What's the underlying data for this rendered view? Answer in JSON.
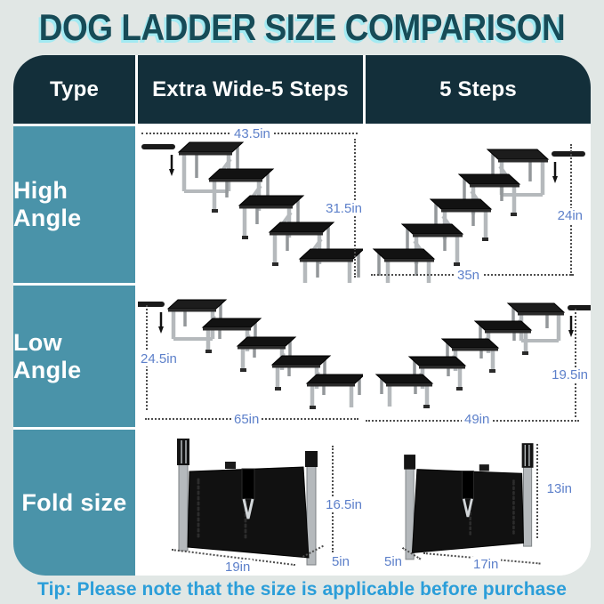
{
  "title": "DOG LADDER SIZE COMPARISON",
  "tip": {
    "label": "Tip:",
    "text": "Please note that the size is applicable before purchase"
  },
  "table": {
    "headers": [
      {
        "label": "Type"
      },
      {
        "label": "Extra Wide-5 Steps"
      },
      {
        "label": "5 Steps"
      }
    ],
    "rows": [
      {
        "label": "High Angle",
        "extra_wide": {
          "top_width": "43.5in",
          "height": "31.5in"
        },
        "five_steps": {
          "height": "24in",
          "bottom_width": "35n"
        }
      },
      {
        "label": "Low Angle",
        "extra_wide": {
          "height": "24.5in",
          "bottom_width": "65in"
        },
        "five_steps": {
          "height": "19.5in",
          "bottom_width": "49in"
        }
      },
      {
        "label": "Fold size",
        "extra_wide": {
          "height": "16.5in",
          "width": "19in",
          "depth": "5in"
        },
        "five_steps": {
          "height": "13in",
          "width": "17in",
          "depth": "5in"
        }
      }
    ]
  },
  "colors": {
    "background": "#e1e7e5",
    "header_bg": "#132f3a",
    "row_label_bg": "#4a93a9",
    "title_text": "#174b57",
    "title_shadow": "#a3eaf2",
    "dimension_text": "#5d80ca",
    "tip_text": "#2b9ed9",
    "cell_bg": "#ffffff"
  }
}
